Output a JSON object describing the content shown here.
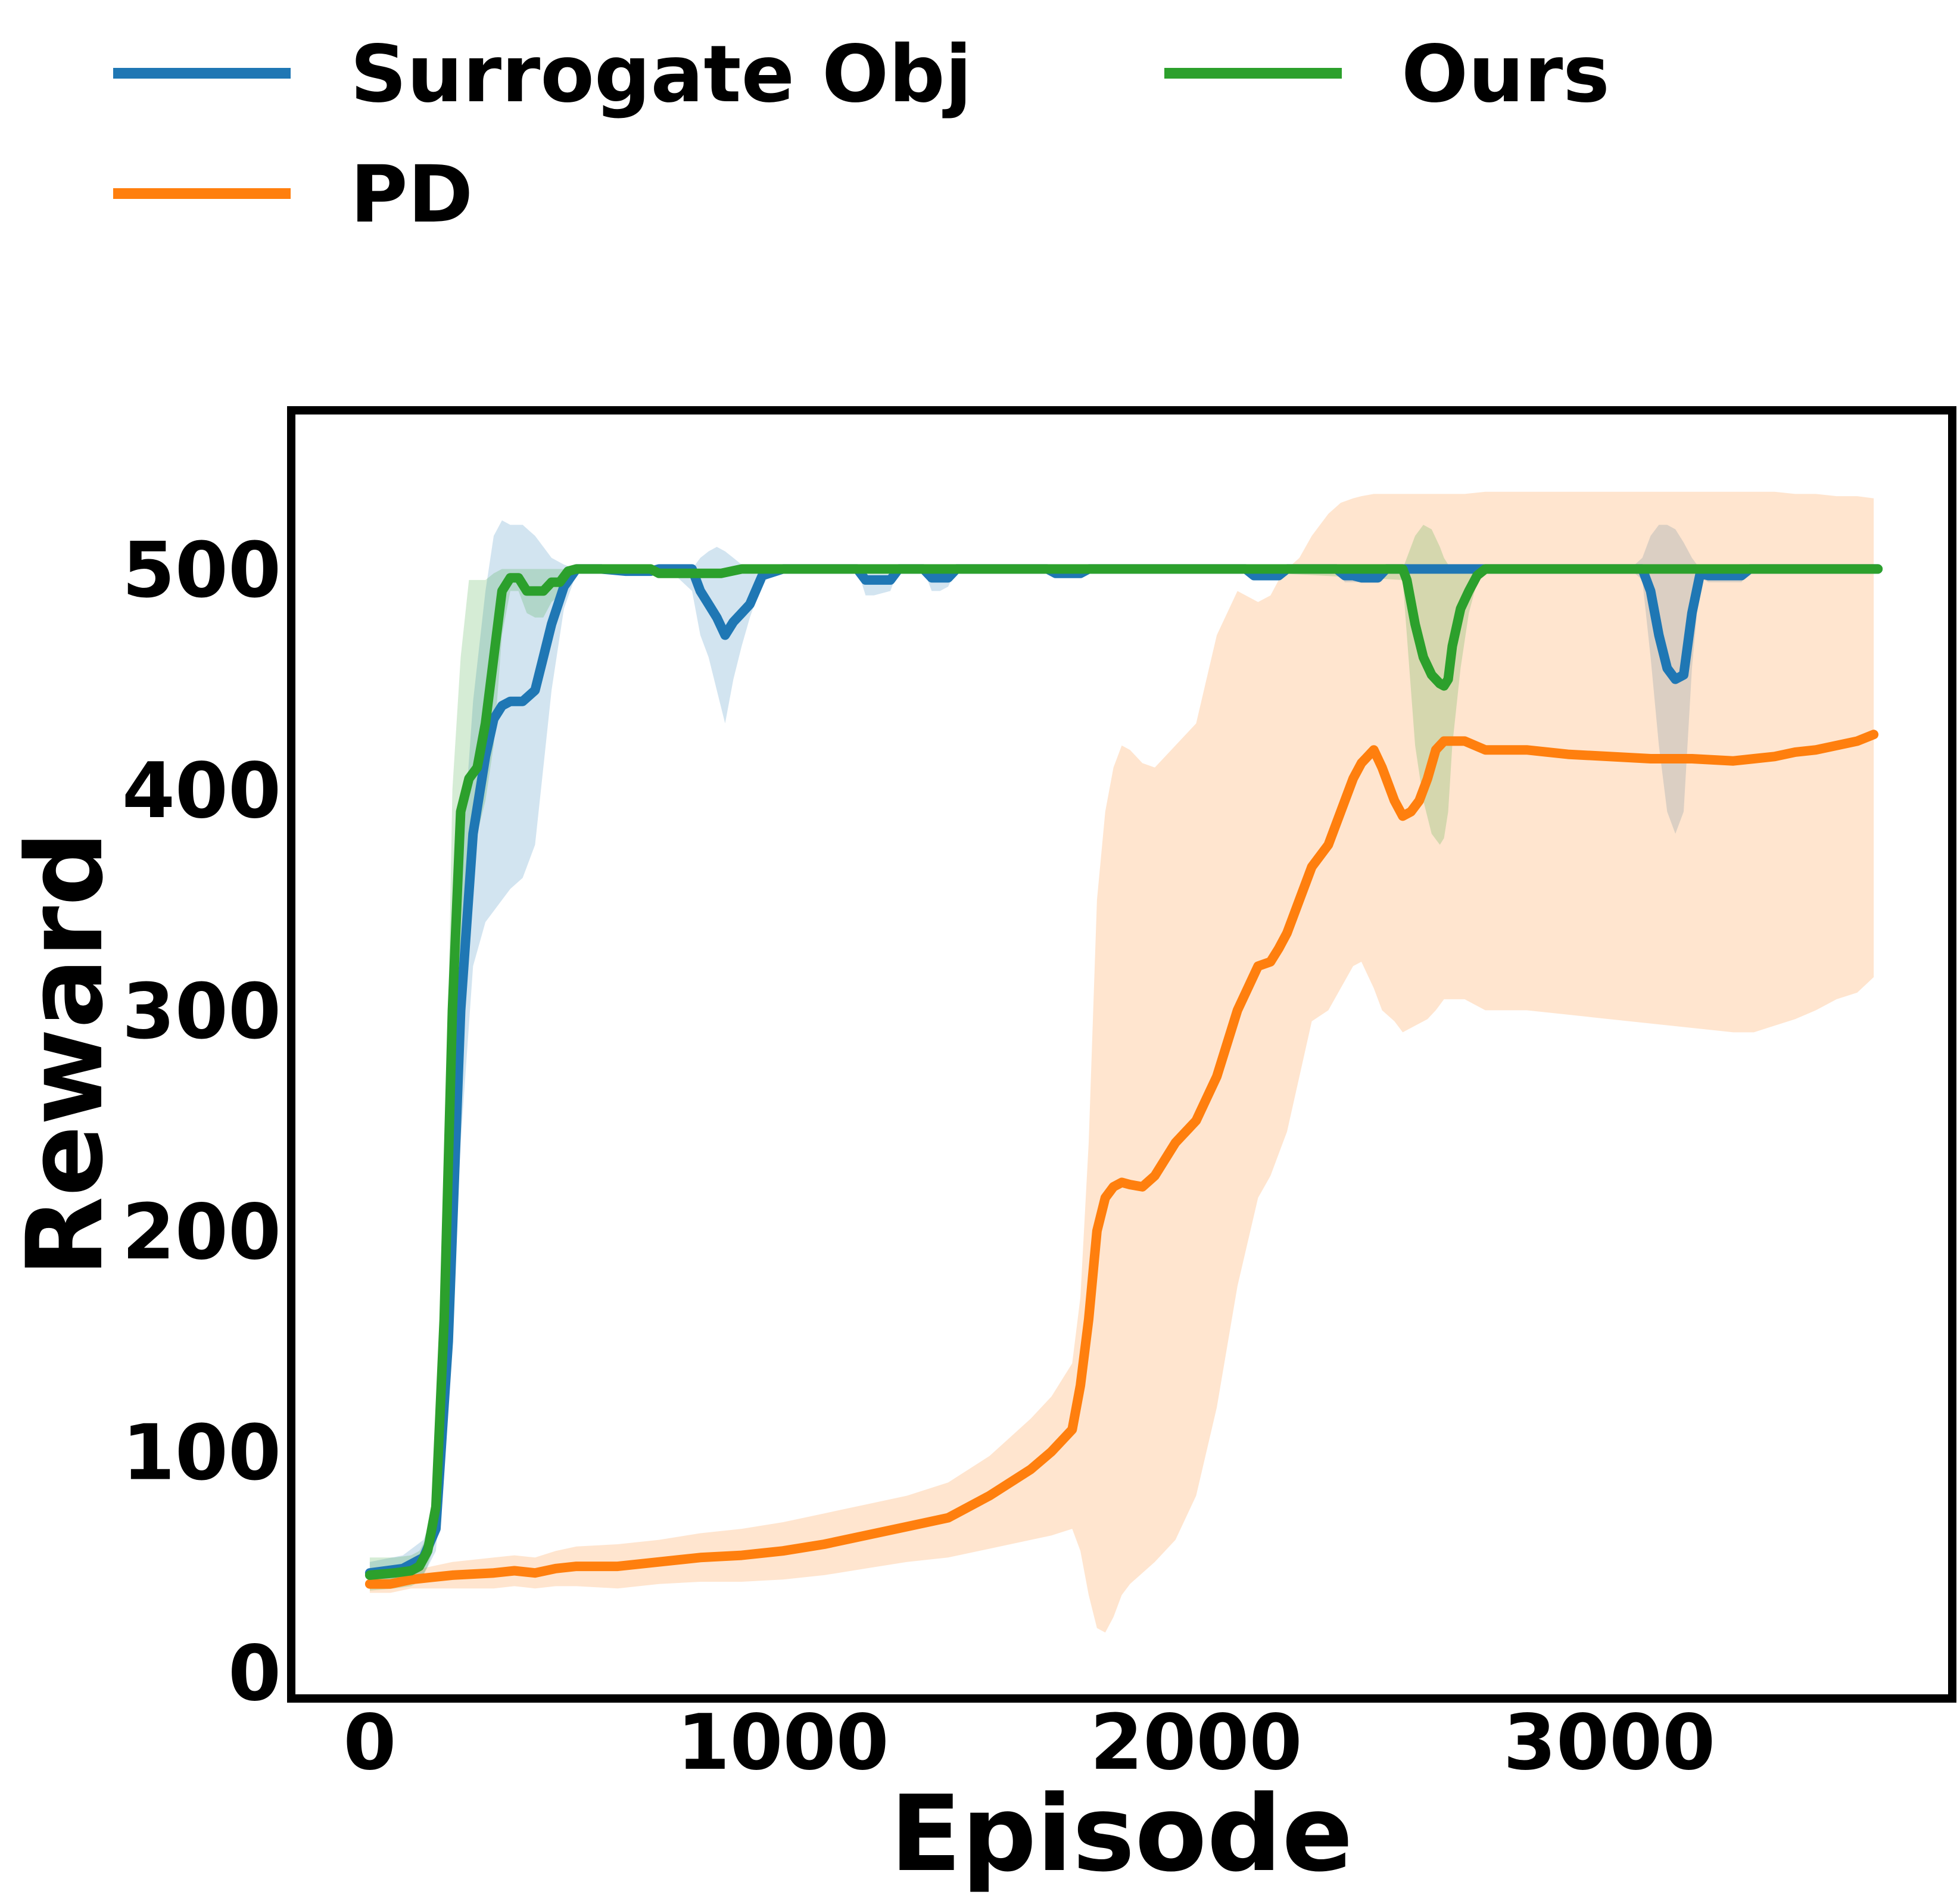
{
  "chart_data": {
    "type": "line",
    "xlabel": "Episode",
    "ylabel": "Reward",
    "xlim": [
      -180,
      3820
    ],
    "ylim": [
      -10,
      570
    ],
    "xticks": [
      0,
      1000,
      2000,
      3000
    ],
    "yticks": [
      0,
      100,
      200,
      300,
      400,
      500
    ],
    "grid": false,
    "legend_position": "top",
    "series": [
      {
        "name": "Surrogate Obj",
        "color": "#1f77b4",
        "x": [
          0,
          80,
          130,
          160,
          190,
          220,
          250,
          280,
          300,
          320,
          340,
          370,
          400,
          420,
          440,
          470,
          500,
          530,
          560,
          620,
          680,
          700,
          740,
          780,
          800,
          820,
          840,
          860,
          880,
          900,
          920,
          950,
          1000,
          1100,
          1180,
          1200,
          1220,
          1260,
          1280,
          1300,
          1340,
          1360,
          1380,
          1400,
          1420,
          1460,
          1500,
          1640,
          1660,
          1700,
          1720,
          1740,
          1760,
          1800,
          2000,
          2120,
          2140,
          2180,
          2200,
          2220,
          2240,
          2300,
          2340,
          2360,
          2380,
          2400,
          2440,
          2460,
          2500,
          2600,
          2700,
          2800,
          2900,
          3000,
          3050,
          3080,
          3100,
          3120,
          3140,
          3160,
          3180,
          3200,
          3220,
          3240,
          3260,
          3300,
          3320,
          3340,
          3400,
          3500,
          3600,
          3650
        ],
        "values": [
          45,
          47,
          52,
          65,
          150,
          300,
          380,
          415,
          432,
          438,
          440,
          440,
          445,
          460,
          475,
          492,
          500,
          500,
          500,
          499,
          499,
          500,
          500,
          500,
          490,
          484,
          478,
          470,
          476,
          480,
          484,
          497,
          500,
          500,
          500,
          495,
          495,
          495,
          500,
          500,
          500,
          496,
          496,
          496,
          500,
          500,
          500,
          500,
          498,
          498,
          498,
          500,
          500,
          500,
          500,
          500,
          497,
          497,
          497,
          500,
          500,
          500,
          500,
          497,
          497,
          496,
          496,
          500,
          500,
          500,
          500,
          500,
          500,
          500,
          500,
          500,
          490,
          470,
          455,
          450,
          452,
          480,
          498,
          497,
          497,
          497,
          497,
          500,
          500,
          500,
          500,
          500
        ],
        "band_upper": [
          50,
          53,
          60,
          75,
          180,
          360,
          440,
          490,
          515,
          522,
          520,
          520,
          515,
          510,
          505,
          502,
          500,
          500,
          500,
          500,
          500,
          500,
          500,
          500,
          505,
          508,
          510,
          508,
          505,
          502,
          501,
          500,
          500,
          500,
          500,
          500,
          500,
          500,
          500,
          500,
          500,
          500,
          500,
          500,
          500,
          500,
          500,
          500,
          500,
          500,
          500,
          500,
          500,
          500,
          500,
          500,
          500,
          500,
          500,
          500,
          500,
          500,
          500,
          500,
          500,
          500,
          500,
          500,
          500,
          500,
          500,
          500,
          500,
          500,
          500,
          505,
          515,
          520,
          520,
          518,
          512,
          505,
          500,
          500,
          500,
          500,
          500,
          500,
          500,
          500,
          500,
          500
        ],
        "band_lower": [
          40,
          41,
          44,
          55,
          120,
          240,
          320,
          340,
          345,
          350,
          355,
          360,
          375,
          410,
          445,
          482,
          498,
          500,
          498,
          498,
          498,
          498,
          497,
          490,
          470,
          460,
          445,
          430,
          450,
          465,
          478,
          494,
          500,
          500,
          500,
          488,
          488,
          490,
          500,
          500,
          500,
          490,
          490,
          492,
          500,
          500,
          500,
          500,
          496,
          496,
          496,
          500,
          500,
          500,
          500,
          500,
          495,
          495,
          495,
          500,
          500,
          500,
          500,
          494,
          494,
          494,
          494,
          500,
          500,
          500,
          500,
          500,
          500,
          500,
          500,
          495,
          460,
          420,
          390,
          380,
          390,
          455,
          496,
          494,
          494,
          494,
          494,
          500,
          500,
          500,
          500,
          500
        ]
      },
      {
        "name": "PD",
        "color": "#ff7f0e",
        "x": [
          0,
          50,
          100,
          150,
          200,
          300,
          350,
          400,
          450,
          500,
          600,
          700,
          800,
          900,
          1000,
          1100,
          1200,
          1300,
          1400,
          1500,
          1600,
          1650,
          1700,
          1720,
          1740,
          1760,
          1780,
          1800,
          1820,
          1840,
          1870,
          1900,
          1950,
          2000,
          2050,
          2100,
          2150,
          2180,
          2200,
          2220,
          2250,
          2280,
          2320,
          2350,
          2380,
          2400,
          2430,
          2450,
          2480,
          2500,
          2520,
          2540,
          2560,
          2580,
          2600,
          2650,
          2700,
          2750,
          2800,
          2900,
          3000,
          3100,
          3200,
          3300,
          3350,
          3400,
          3450,
          3500,
          3550,
          3600,
          3640
        ],
        "values": [
          40,
          40,
          42,
          43,
          44,
          45,
          46,
          45,
          47,
          48,
          48,
          50,
          52,
          53,
          55,
          58,
          62,
          66,
          70,
          80,
          92,
          100,
          110,
          130,
          160,
          200,
          215,
          220,
          222,
          221,
          220,
          225,
          240,
          250,
          270,
          300,
          320,
          322,
          328,
          335,
          350,
          365,
          375,
          390,
          405,
          412,
          418,
          410,
          395,
          388,
          390,
          395,
          405,
          418,
          422,
          422,
          418,
          418,
          418,
          416,
          415,
          414,
          414,
          413,
          414,
          415,
          417,
          418,
          420,
          422,
          425
        ],
        "band_upper": [
          44,
          44,
          46,
          48,
          50,
          52,
          53,
          52,
          55,
          57,
          58,
          60,
          63,
          65,
          68,
          72,
          76,
          80,
          86,
          98,
          115,
          125,
          140,
          170,
          240,
          350,
          390,
          410,
          420,
          418,
          412,
          410,
          420,
          430,
          470,
          490,
          485,
          488,
          495,
          500,
          505,
          515,
          525,
          530,
          532,
          533,
          534,
          534,
          534,
          534,
          534,
          534,
          534,
          534,
          534,
          534,
          535,
          535,
          535,
          535,
          535,
          535,
          535,
          535,
          535,
          535,
          534,
          534,
          533,
          533,
          532
        ],
        "band_lower": [
          36,
          36,
          38,
          38,
          38,
          38,
          39,
          38,
          39,
          39,
          38,
          40,
          41,
          41,
          42,
          44,
          47,
          50,
          52,
          56,
          60,
          62,
          65,
          55,
          35,
          20,
          18,
          25,
          35,
          40,
          45,
          50,
          60,
          80,
          120,
          175,
          215,
          225,
          235,
          245,
          270,
          295,
          300,
          310,
          320,
          322,
          310,
          300,
          295,
          290,
          292,
          294,
          296,
          300,
          305,
          305,
          300,
          300,
          300,
          298,
          296,
          294,
          292,
          290,
          290,
          293,
          296,
          300,
          305,
          308,
          315
        ]
      },
      {
        "name": "Ours",
        "color": "#2ca02c",
        "x": [
          0,
          60,
          100,
          120,
          140,
          160,
          180,
          200,
          220,
          240,
          260,
          280,
          300,
          320,
          340,
          360,
          380,
          400,
          420,
          440,
          460,
          480,
          500,
          520,
          540,
          560,
          600,
          650,
          680,
          700,
          750,
          780,
          800,
          850,
          900,
          1000,
          2000,
          2500,
          2510,
          2530,
          2550,
          2570,
          2590,
          2600,
          2610,
          2620,
          2640,
          2660,
          2680,
          2700,
          2800,
          3000,
          3200,
          3400,
          3600,
          3650
        ],
        "values": [
          44,
          45,
          46,
          48,
          55,
          75,
          160,
          300,
          390,
          405,
          410,
          430,
          460,
          490,
          496,
          496,
          490,
          490,
          490,
          494,
          494,
          499,
          500,
          500,
          500,
          500,
          500,
          500,
          500,
          498,
          498,
          498,
          498,
          498,
          500,
          500,
          500,
          500,
          495,
          475,
          460,
          452,
          448,
          447,
          450,
          465,
          482,
          490,
          497,
          500,
          500,
          500,
          500,
          500,
          500,
          500
        ],
        "band_upper": [
          52,
          52,
          53,
          55,
          62,
          90,
          200,
          400,
          460,
          495,
          495,
          495,
          498,
          500,
          500,
          500,
          500,
          500,
          500,
          500,
          500,
          500,
          500,
          500,
          500,
          500,
          500,
          500,
          500,
          500,
          500,
          500,
          500,
          500,
          500,
          500,
          500,
          500,
          505,
          515,
          520,
          518,
          510,
          505,
          502,
          500,
          500,
          500,
          500,
          500,
          500,
          500,
          500,
          500,
          500,
          500
        ],
        "band_lower": [
          37,
          38,
          39,
          41,
          48,
          60,
          120,
          200,
          320,
          355,
          380,
          395,
          420,
          470,
          490,
          490,
          480,
          478,
          478,
          485,
          488,
          497,
          500,
          500,
          500,
          500,
          500,
          500,
          500,
          496,
          496,
          496,
          496,
          496,
          500,
          500,
          500,
          495,
          470,
          420,
          395,
          380,
          375,
          378,
          390,
          420,
          455,
          480,
          494,
          500,
          500,
          500,
          500,
          500,
          500,
          500
        ]
      }
    ]
  }
}
